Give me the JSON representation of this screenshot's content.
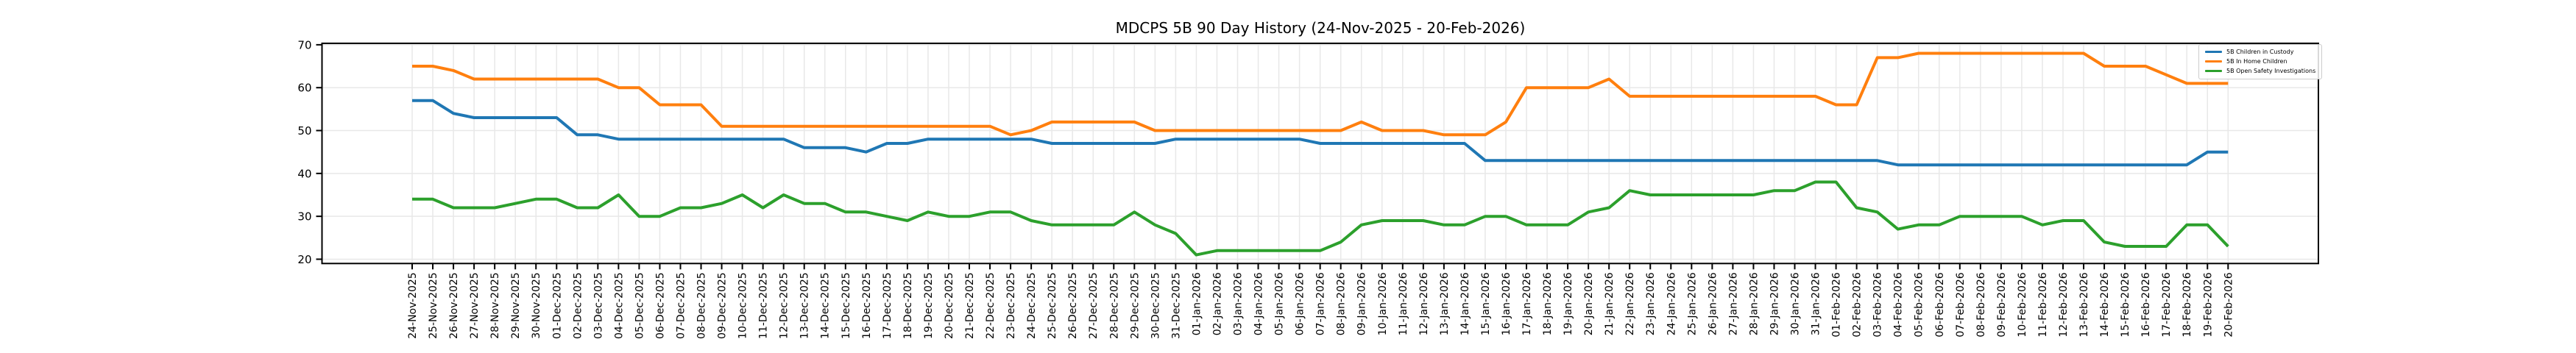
{
  "chart_data": {
    "type": "line",
    "title": "MDCPS 5B 90 Day History (24-Nov-2025 - 20-Feb-2026)",
    "xlabel": "",
    "ylabel": "",
    "ylim": [
      19.0,
      70.34
    ],
    "yticks": [
      20,
      30,
      40,
      50,
      60,
      70
    ],
    "grid": true,
    "legend_position": "upper-right",
    "x_tick_label_rotation": 90,
    "axis_color": "#000000",
    "grid_color": "#e8e8e8",
    "x_labels": [
      "24-Nov-2025",
      "25-Nov-2025",
      "26-Nov-2025",
      "27-Nov-2025",
      "28-Nov-2025",
      "29-Nov-2025",
      "30-Nov-2025",
      "01-Dec-2025",
      "02-Dec-2025",
      "03-Dec-2025",
      "04-Dec-2025",
      "05-Dec-2025",
      "06-Dec-2025",
      "07-Dec-2025",
      "08-Dec-2025",
      "09-Dec-2025",
      "10-Dec-2025",
      "11-Dec-2025",
      "12-Dec-2025",
      "13-Dec-2025",
      "14-Dec-2025",
      "15-Dec-2025",
      "16-Dec-2025",
      "17-Dec-2025",
      "18-Dec-2025",
      "19-Dec-2025",
      "20-Dec-2025",
      "21-Dec-2025",
      "22-Dec-2025",
      "23-Dec-2025",
      "24-Dec-2025",
      "25-Dec-2025",
      "26-Dec-2025",
      "27-Dec-2025",
      "28-Dec-2025",
      "29-Dec-2025",
      "30-Dec-2025",
      "31-Dec-2025",
      "01-Jan-2026",
      "02-Jan-2026",
      "03-Jan-2026",
      "04-Jan-2026",
      "05-Jan-2026",
      "06-Jan-2026",
      "07-Jan-2026",
      "08-Jan-2026",
      "09-Jan-2026",
      "10-Jan-2026",
      "11-Jan-2026",
      "12-Jan-2026",
      "13-Jan-2026",
      "14-Jan-2026",
      "15-Jan-2026",
      "16-Jan-2026",
      "17-Jan-2026",
      "18-Jan-2026",
      "19-Jan-2026",
      "20-Jan-2026",
      "21-Jan-2026",
      "22-Jan-2026",
      "23-Jan-2026",
      "24-Jan-2026",
      "25-Jan-2026",
      "26-Jan-2026",
      "27-Jan-2026",
      "28-Jan-2026",
      "29-Jan-2026",
      "30-Jan-2026",
      "31-Jan-2026",
      "01-Feb-2026",
      "02-Feb-2026",
      "03-Feb-2026",
      "04-Feb-2026",
      "05-Feb-2026",
      "06-Feb-2026",
      "07-Feb-2026",
      "08-Feb-2026",
      "09-Feb-2026",
      "10-Feb-2026",
      "11-Feb-2026",
      "12-Feb-2026",
      "13-Feb-2026",
      "14-Feb-2026",
      "15-Feb-2026",
      "16-Feb-2026",
      "17-Feb-2026",
      "18-Feb-2026",
      "19-Feb-2026",
      "20-Feb-2026"
    ],
    "series": [
      {
        "name": "5B Children in Custody",
        "color": "#1f77b4",
        "values": [
          57,
          57,
          54,
          53,
          53,
          53,
          53,
          53,
          49,
          49,
          48,
          48,
          48,
          48,
          48,
          48,
          48,
          48,
          48,
          46,
          46,
          46,
          45,
          47,
          47,
          48,
          48,
          48,
          48,
          48,
          48,
          47,
          47,
          47,
          47,
          47,
          47,
          48,
          48,
          48,
          48,
          48,
          48,
          48,
          47,
          47,
          47,
          47,
          47,
          47,
          47,
          47,
          43,
          43,
          43,
          43,
          43,
          43,
          43,
          43,
          43,
          43,
          43,
          43,
          43,
          43,
          43,
          43,
          43,
          43,
          43,
          43,
          42,
          42,
          42,
          42,
          42,
          42,
          42,
          42,
          42,
          42,
          42,
          42,
          42,
          42,
          42,
          45,
          45
        ]
      },
      {
        "name": "5B In Home Children",
        "color": "#ff7f0e",
        "values": [
          65,
          65,
          64,
          62,
          62,
          62,
          62,
          62,
          62,
          62,
          60,
          60,
          56,
          56,
          56,
          51,
          51,
          51,
          51,
          51,
          51,
          51,
          51,
          51,
          51,
          51,
          51,
          51,
          51,
          49,
          50,
          52,
          52,
          52,
          52,
          52,
          50,
          50,
          50,
          50,
          50,
          50,
          50,
          50,
          50,
          50,
          52,
          50,
          50,
          50,
          49,
          49,
          49,
          52,
          60,
          60,
          60,
          60,
          62,
          58,
          58,
          58,
          58,
          58,
          58,
          58,
          58,
          58,
          58,
          56,
          56,
          67,
          67,
          68,
          68,
          68,
          68,
          68,
          68,
          68,
          68,
          68,
          65,
          65,
          65,
          63,
          61,
          61,
          61
        ]
      },
      {
        "name": "5B Open Safety Investigations",
        "color": "#2ca02c",
        "values": [
          34,
          34,
          32,
          32,
          32,
          33,
          34,
          34,
          32,
          32,
          35,
          30,
          30,
          32,
          32,
          33,
          35,
          32,
          35,
          33,
          33,
          31,
          31,
          30,
          29,
          31,
          30,
          30,
          31,
          31,
          29,
          28,
          28,
          28,
          28,
          31,
          28,
          26,
          21,
          22,
          22,
          22,
          22,
          22,
          22,
          24,
          28,
          29,
          29,
          29,
          28,
          28,
          30,
          30,
          28,
          28,
          28,
          31,
          32,
          36,
          35,
          35,
          35,
          35,
          35,
          35,
          36,
          36,
          38,
          38,
          32,
          31,
          27,
          28,
          28,
          30,
          30,
          30,
          30,
          28,
          29,
          29,
          24,
          23,
          23,
          23,
          28,
          28,
          23
        ]
      }
    ]
  }
}
